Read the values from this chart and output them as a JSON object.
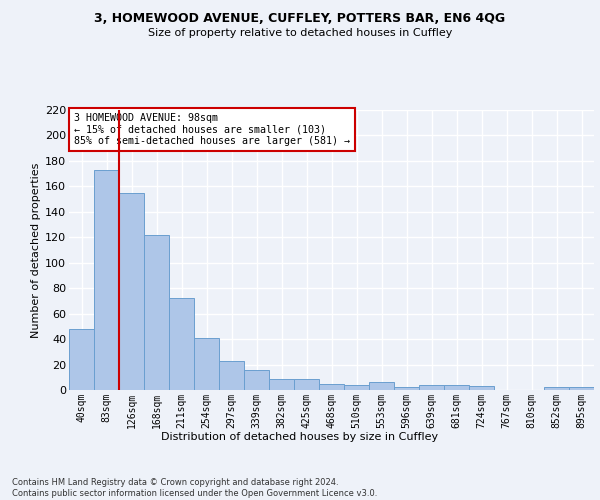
{
  "title1": "3, HOMEWOOD AVENUE, CUFFLEY, POTTERS BAR, EN6 4QG",
  "title2": "Size of property relative to detached houses in Cuffley",
  "xlabel": "Distribution of detached houses by size in Cuffley",
  "ylabel": "Number of detached properties",
  "categories": [
    "40sqm",
    "83sqm",
    "126sqm",
    "168sqm",
    "211sqm",
    "254sqm",
    "297sqm",
    "339sqm",
    "382sqm",
    "425sqm",
    "468sqm",
    "510sqm",
    "553sqm",
    "596sqm",
    "639sqm",
    "681sqm",
    "724sqm",
    "767sqm",
    "810sqm",
    "852sqm",
    "895sqm"
  ],
  "values": [
    48,
    173,
    155,
    122,
    72,
    41,
    23,
    16,
    9,
    9,
    5,
    4,
    6,
    2,
    4,
    4,
    3,
    0,
    0,
    2,
    2
  ],
  "bar_color": "#aec6e8",
  "bar_edge_color": "#6a9fd0",
  "subject_line_color": "#cc0000",
  "annotation_text": "3 HOMEWOOD AVENUE: 98sqm\n← 15% of detached houses are smaller (103)\n85% of semi-detached houses are larger (581) →",
  "annotation_box_color": "#ffffff",
  "annotation_box_edge": "#cc0000",
  "ylim": [
    0,
    220
  ],
  "yticks": [
    0,
    20,
    40,
    60,
    80,
    100,
    120,
    140,
    160,
    180,
    200,
    220
  ],
  "footer": "Contains HM Land Registry data © Crown copyright and database right 2024.\nContains public sector information licensed under the Open Government Licence v3.0.",
  "background_color": "#eef2f9",
  "grid_color": "#ffffff"
}
